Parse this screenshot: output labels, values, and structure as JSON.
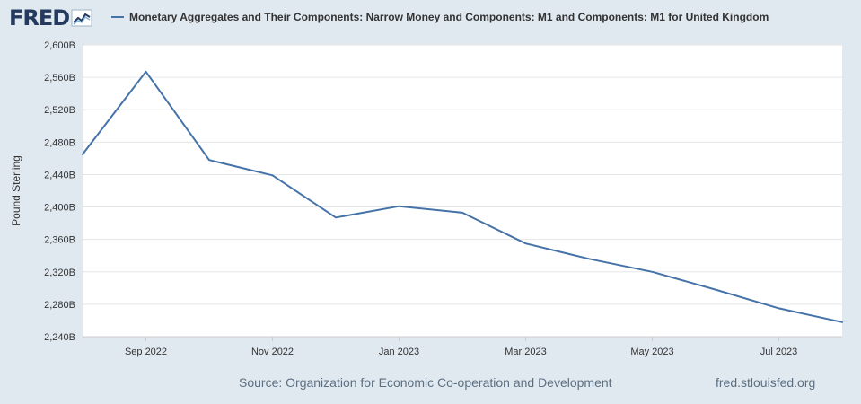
{
  "header": {
    "logo_text": "FRED",
    "legend_label": "Monetary Aggregates and Their Components: Narrow Money and Components: M1 and Components: M1 for United Kingdom"
  },
  "footer": {
    "source": "Source: Organization for Economic Co-operation and Development",
    "url": "fred.stlouisfed.org"
  },
  "colors": {
    "background": "#e1e9f0",
    "plot_background": "#ffffff",
    "series": "#4572a7",
    "logo": "#243a5e"
  },
  "chart_data": {
    "type": "line",
    "title": "",
    "xlabel": "",
    "ylabel": "Pound Sterling",
    "x": [
      "2022-08",
      "2022-09",
      "2022-10",
      "2022-11",
      "2022-12",
      "2023-01",
      "2023-02",
      "2023-03",
      "2023-04",
      "2023-05",
      "2023-06",
      "2023-07",
      "2023-08"
    ],
    "series": [
      {
        "name": "Monetary Aggregates and Their Components: Narrow Money and Components: M1 and Components: M1 for United Kingdom",
        "values": [
          2465,
          2567,
          2458,
          2439,
          2387,
          2401,
          2393,
          2355,
          2336,
          2320,
          2298,
          2275,
          2258
        ]
      }
    ],
    "ylim": [
      2240,
      2600
    ],
    "y_ticks": [
      2240,
      2280,
      2320,
      2360,
      2400,
      2440,
      2480,
      2520,
      2560,
      2600
    ],
    "y_tick_labels": [
      "2,240B",
      "2,280B",
      "2,320B",
      "2,360B",
      "2,400B",
      "2,440B",
      "2,480B",
      "2,520B",
      "2,560B",
      "2,600B"
    ],
    "x_tick_labels": [
      "Sep 2022",
      "Nov 2022",
      "Jan 2023",
      "Mar 2023",
      "May 2023",
      "Jul 2023"
    ],
    "x_tick_positions": [
      1,
      3,
      5,
      7,
      9,
      11
    ],
    "grid": true,
    "legend": "top"
  }
}
